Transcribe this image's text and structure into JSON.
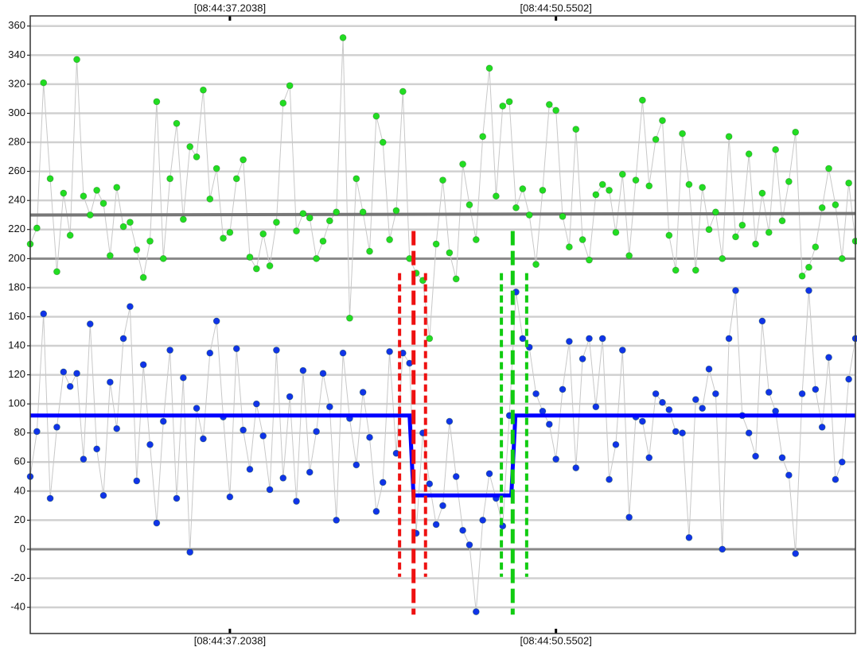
{
  "chart_data": {
    "type": "scatter",
    "xlim": [
      0,
      124
    ],
    "xticks": [
      {
        "value": 30,
        "label": "[08:44:37.2038]"
      },
      {
        "value": 79,
        "label": "[08:44:50.5502]"
      }
    ],
    "ylim": [
      -58,
      367
    ],
    "yticks": [
      -40,
      -20,
      0,
      20,
      40,
      60,
      80,
      100,
      120,
      140,
      160,
      180,
      200,
      220,
      240,
      260,
      280,
      300,
      320,
      340,
      360
    ],
    "grid": true,
    "series": [
      {
        "color": "#22dd22",
        "values": [
          210,
          221,
          321,
          255,
          191,
          245,
          216,
          337,
          243,
          230,
          247,
          238,
          202,
          249,
          222,
          225,
          206,
          187,
          212,
          308,
          200,
          255,
          293,
          227,
          277,
          270,
          316,
          241,
          262,
          214,
          218,
          255,
          268,
          201,
          193,
          217,
          195,
          225,
          307,
          319,
          219,
          231,
          228,
          200,
          212,
          226,
          232,
          352,
          159,
          255,
          232,
          205,
          298,
          280,
          213,
          233,
          315,
          200,
          190,
          185,
          145,
          210,
          254,
          204,
          186,
          265,
          237,
          213,
          284,
          331,
          243,
          305,
          308,
          235,
          248,
          230,
          196,
          247,
          306,
          302,
          229,
          208,
          289,
          213,
          199,
          244,
          251,
          247,
          218,
          258,
          202,
          254,
          309,
          250,
          282,
          295,
          216,
          192,
          286,
          251,
          192,
          249,
          220,
          232,
          200,
          284,
          215,
          223,
          272,
          210,
          245,
          218,
          275,
          226,
          253,
          287,
          188,
          194,
          208,
          235,
          262,
          237,
          200,
          252,
          212
        ]
      },
      {
        "color": "#1034e8",
        "values": [
          50,
          81,
          162,
          35,
          84,
          122,
          112,
          121,
          62,
          155,
          69,
          37,
          115,
          83,
          145,
          167,
          47,
          127,
          72,
          18,
          88,
          137,
          35,
          118,
          -2,
          97,
          76,
          135,
          157,
          91,
          36,
          138,
          82,
          55,
          100,
          78,
          41,
          137,
          49,
          105,
          33,
          123,
          53,
          81,
          121,
          98,
          20,
          135,
          90,
          58,
          108,
          77,
          26,
          46,
          136,
          66,
          135,
          128,
          11,
          80,
          45,
          17,
          30,
          88,
          50,
          13,
          3,
          -43,
          20,
          52,
          35,
          16,
          92,
          177,
          145,
          139,
          107,
          95,
          86,
          62,
          110,
          143,
          56,
          131,
          145,
          98,
          145,
          48,
          72,
          137,
          22,
          91,
          88,
          63,
          107,
          101,
          96,
          81,
          80,
          8,
          103,
          97,
          124,
          107,
          0,
          145,
          178,
          92,
          80,
          64,
          157,
          108,
          95,
          63,
          51,
          -3,
          107,
          178,
          110,
          84,
          132,
          48,
          60,
          117,
          145
        ]
      }
    ],
    "lines": [
      {
        "color": "#0000ff",
        "x": [
          0,
          57,
          57.6,
          72.3,
          72.9,
          124
        ],
        "values": [
          92,
          92,
          37,
          37,
          92,
          92
        ]
      },
      {
        "color": "#777777",
        "x": [
          0,
          124
        ],
        "values": [
          230,
          231
        ]
      }
    ],
    "hlines": [
      {
        "value": 0,
        "color": "#888888"
      },
      {
        "value": 200,
        "color": "#888888"
      }
    ],
    "vlines": [
      {
        "x": 55.5,
        "ymin": -19,
        "ymax": 190,
        "color": "#ee1111"
      },
      {
        "x": 57.6,
        "ymin": -45,
        "ymax": 219,
        "color": "#ee1111"
      },
      {
        "x": 59.4,
        "ymin": -19,
        "ymax": 190,
        "color": "#ee1111"
      },
      {
        "x": 70.8,
        "ymin": -19,
        "ymax": 190,
        "color": "#11cc11"
      },
      {
        "x": 72.5,
        "ymin": -45,
        "ymax": 219,
        "color": "#11cc11"
      },
      {
        "x": 74.6,
        "ymin": -19,
        "ymax": 190,
        "color": "#11cc11"
      }
    ]
  }
}
